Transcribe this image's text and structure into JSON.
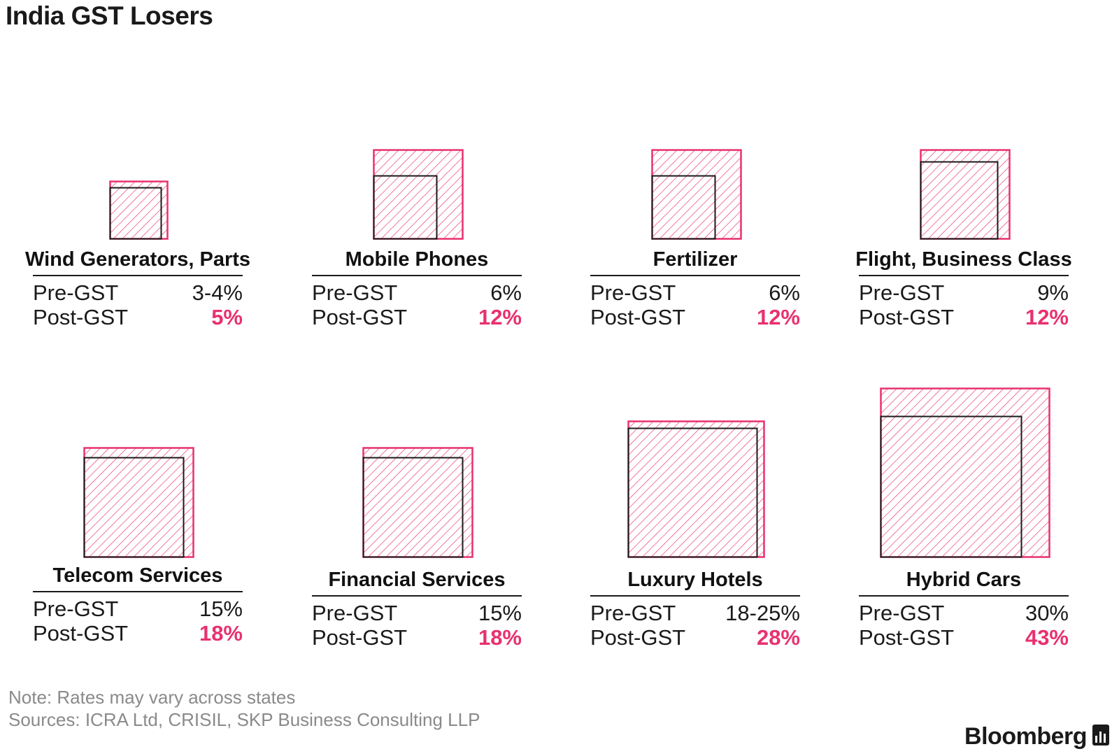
{
  "title": "India GST Losers",
  "colors": {
    "accent": "#e8316f",
    "text": "#1a1a1a",
    "note": "#8a8a8a"
  },
  "chart_data": {
    "type": "square-area comparison",
    "measure": "GST rate",
    "series": [
      {
        "name": "Pre-GST",
        "color": "#1a1a1a",
        "style": "outline"
      },
      {
        "name": "Post-GST",
        "color": "#e8316f",
        "style": "hatched"
      }
    ],
    "items": [
      {
        "name": "Wind Generators, Parts",
        "pre_label": "3-4%",
        "post_label": "5%",
        "pre": 4,
        "post": 5
      },
      {
        "name": "Mobile Phones",
        "pre_label": "6%",
        "post_label": "12%",
        "pre": 6,
        "post": 12
      },
      {
        "name": "Fertilizer",
        "pre_label": "6%",
        "post_label": "12%",
        "pre": 6,
        "post": 12
      },
      {
        "name": "Flight, Business Class",
        "pre_label": "9%",
        "post_label": "12%",
        "pre": 9,
        "post": 12
      },
      {
        "name": "Telecom Services",
        "pre_label": "15%",
        "post_label": "18%",
        "pre": 15,
        "post": 18
      },
      {
        "name": "Financial Services",
        "pre_label": "15%",
        "post_label": "18%",
        "pre": 15,
        "post": 18
      },
      {
        "name": "Luxury Hotels",
        "pre_label": "18-25%",
        "post_label": "28%",
        "pre": 25,
        "post": 28
      },
      {
        "name": "Hybrid Cars",
        "pre_label": "30%",
        "post_label": "43%",
        "pre": 30,
        "post": 43
      }
    ]
  },
  "labels": {
    "pre": "Pre-GST",
    "post": "Post-GST"
  },
  "footer": {
    "note": "Note: Rates may vary across states",
    "sources": "Sources: ICRA Ltd, CRISIL, SKP Business Consulting LLP",
    "brand": "Bloomberg",
    "brand_icon": "bloomberg-chart-icon"
  }
}
